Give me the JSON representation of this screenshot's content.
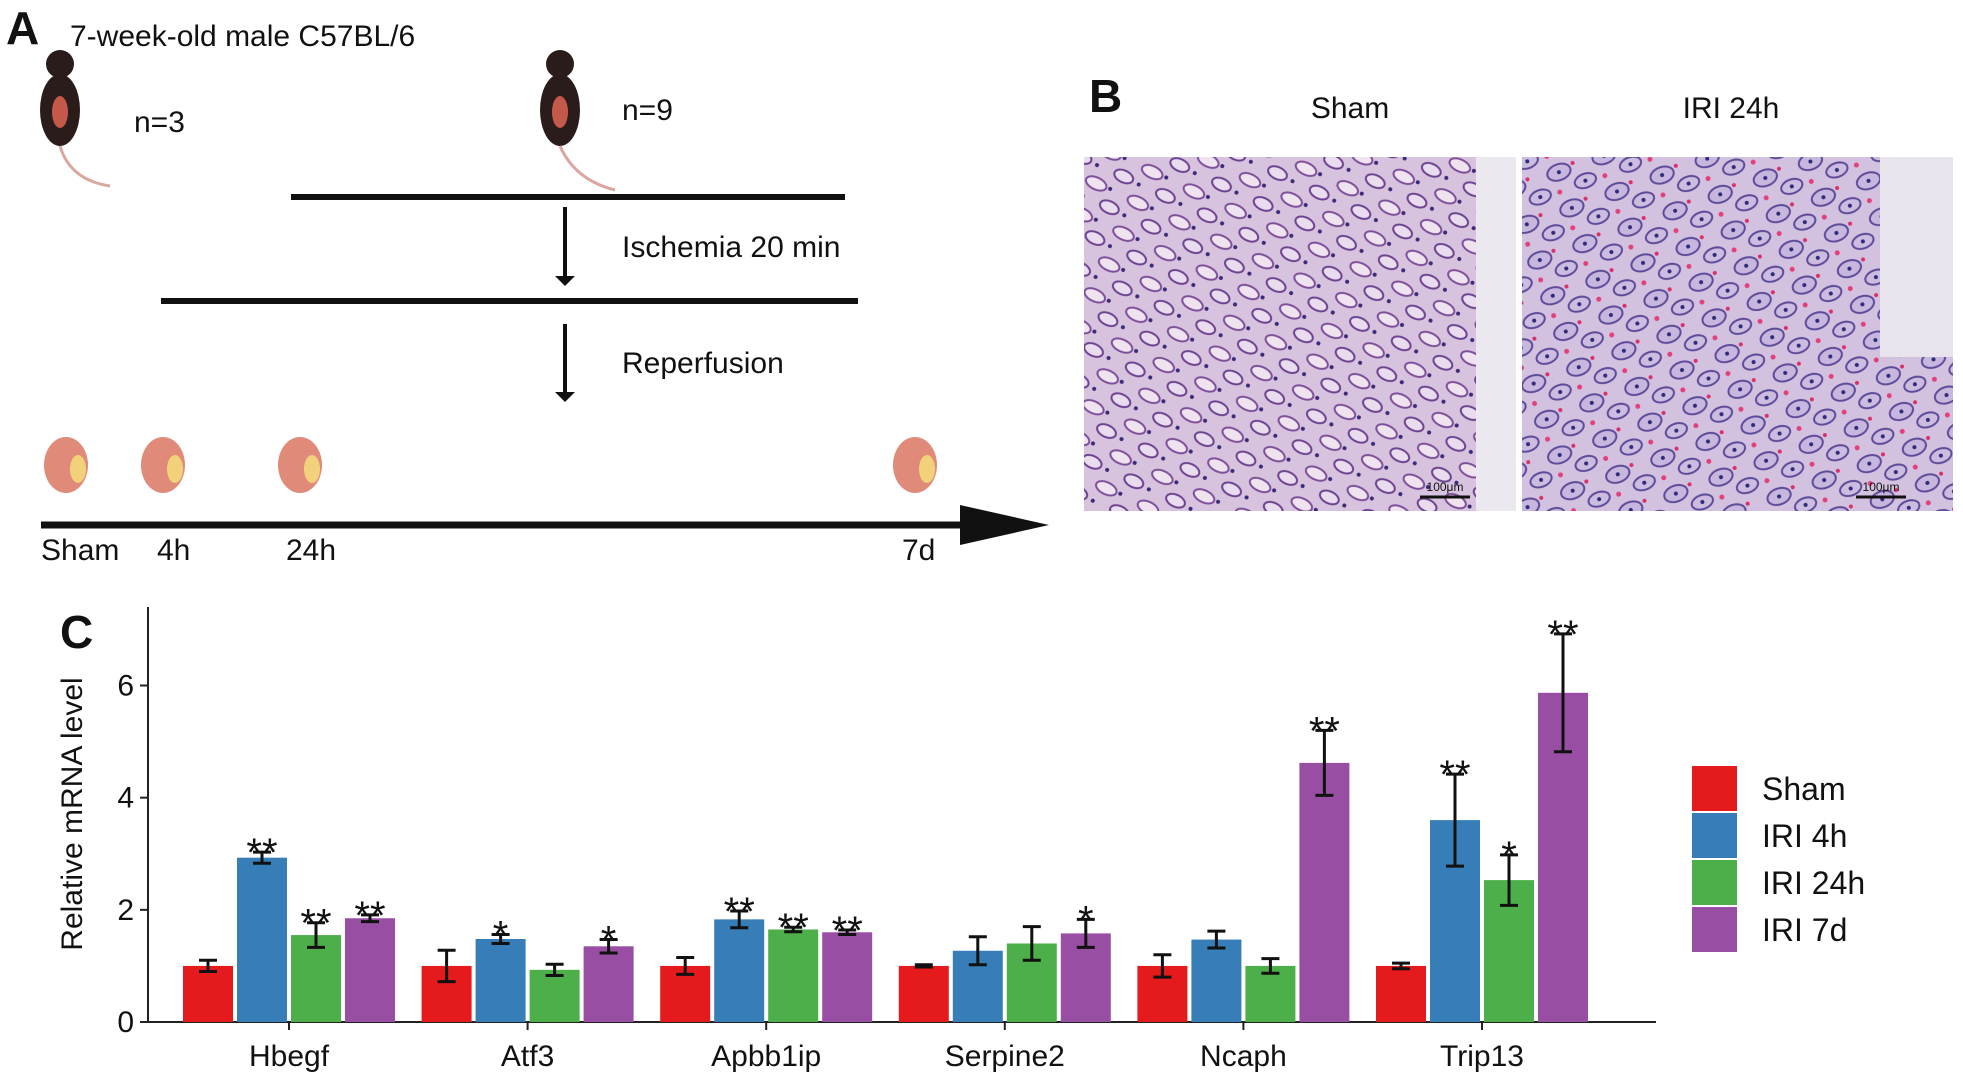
{
  "panel_a": {
    "label": "A",
    "strain": "7-week-old male C57BL/6",
    "groups": [
      "n=3",
      "n=9"
    ],
    "steps": [
      "Ischemia 20 min",
      "Reperfusion"
    ],
    "timepoints": [
      "Sham",
      "4h",
      "24h",
      "7d"
    ]
  },
  "panel_b": {
    "label": "B",
    "columns": [
      "Sham",
      "IRI 24h"
    ],
    "scale_bar": "100μm"
  },
  "chart_data": {
    "type": "bar",
    "label": "C",
    "y_label": "Relative mRNA level",
    "categories": [
      "Hbegf",
      "Atf3",
      "Apbb1ip",
      "Serpine2",
      "Ncaph",
      "Trip13"
    ],
    "ylim": [
      0,
      7.4
    ],
    "yticks": [
      0,
      2,
      4,
      6
    ],
    "grid": false,
    "legend": "right",
    "series": [
      {
        "name": "Sham",
        "color": "#e41a1c",
        "values": [
          1.0,
          1.0,
          1.0,
          1.0,
          1.0,
          1.0
        ],
        "errors": [
          0.1,
          0.28,
          0.15,
          0.02,
          0.2,
          0.05
        ]
      },
      {
        "name": "IRI 4h",
        "color": "#377eb8",
        "values": [
          2.93,
          1.48,
          1.83,
          1.27,
          1.47,
          3.6
        ],
        "errors": [
          0.1,
          0.08,
          0.15,
          0.25,
          0.15,
          0.82
        ],
        "significance": [
          "**",
          "*",
          "**",
          null,
          null,
          "**"
        ]
      },
      {
        "name": "IRI 24h",
        "color": "#4daf4a",
        "values": [
          1.55,
          0.93,
          1.65,
          1.4,
          1.0,
          2.53
        ],
        "errors": [
          0.22,
          0.1,
          0.04,
          0.3,
          0.13,
          0.45
        ],
        "significance": [
          "**",
          null,
          "**",
          null,
          null,
          "*"
        ]
      },
      {
        "name": "IRI 7d",
        "color": "#984ea3",
        "values": [
          1.85,
          1.35,
          1.6,
          1.58,
          4.62,
          5.87
        ],
        "errors": [
          0.06,
          0.12,
          0.04,
          0.25,
          0.58,
          1.05
        ],
        "significance": [
          "**",
          "*",
          "**",
          "*",
          "**",
          "**"
        ]
      }
    ]
  }
}
